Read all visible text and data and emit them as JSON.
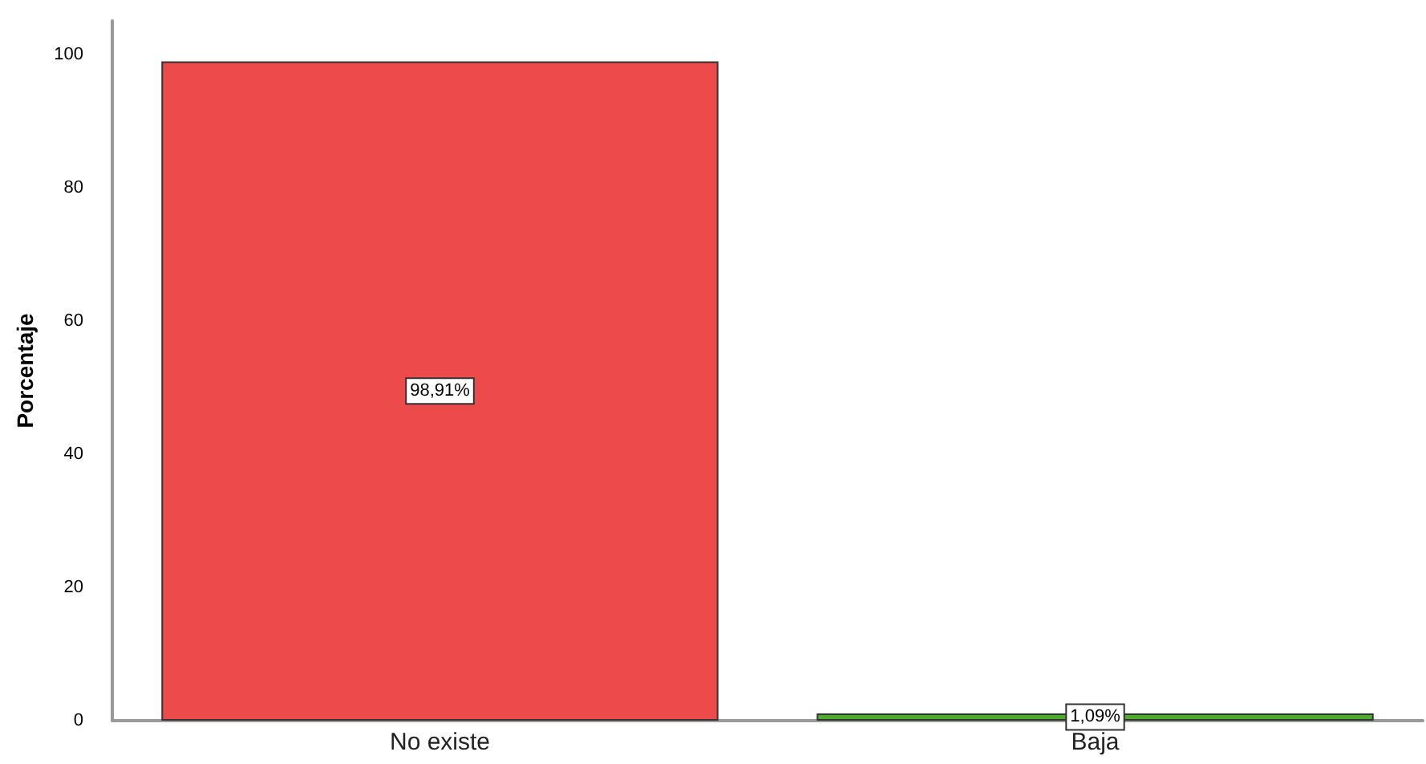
{
  "chart_data": {
    "type": "bar",
    "ylabel": "Porcentaje",
    "categories": [
      "No existe",
      "Baja"
    ],
    "values": [
      98.91,
      1.09
    ],
    "value_labels": [
      "98,91%",
      "1,09%"
    ],
    "colors": [
      "#ec4a4b",
      "#4caf2c"
    ],
    "ylim": [
      0,
      105
    ],
    "yticks": [
      0,
      20,
      40,
      60,
      80,
      100
    ],
    "grid": false
  }
}
